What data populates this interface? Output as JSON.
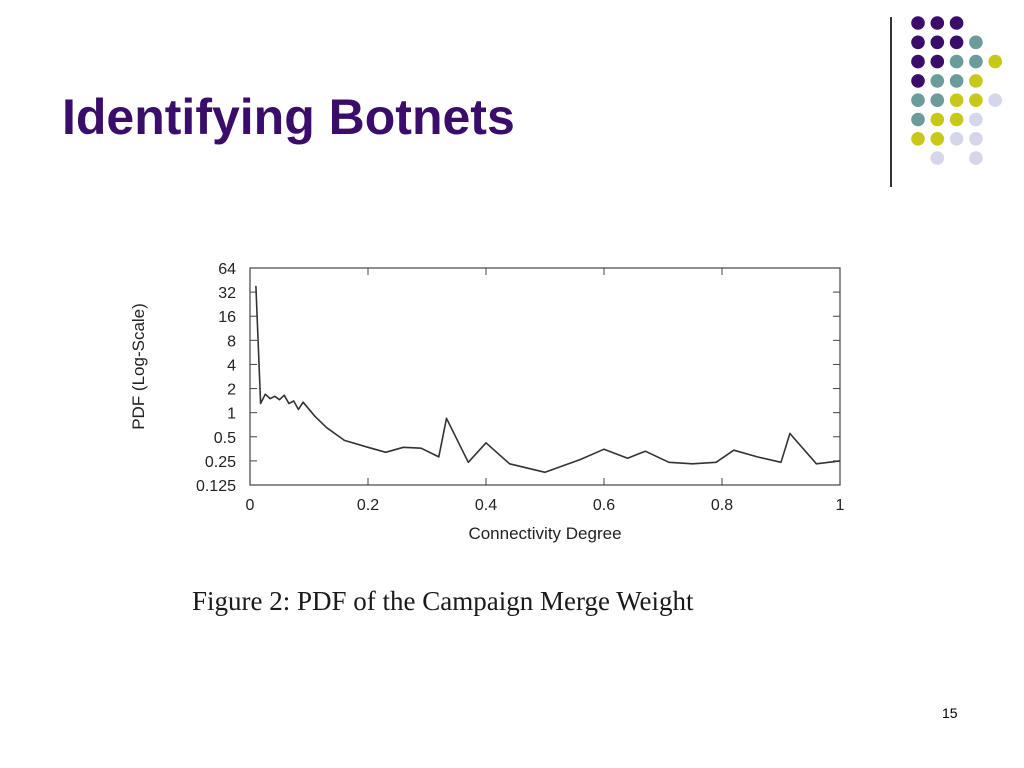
{
  "slide": {
    "title": "Identifying Botnets",
    "caption": "Figure 2: PDF of the Campaign Merge Weight",
    "page_number": "15"
  },
  "theme": {
    "title_color": "#3b0d6b",
    "dot_colors": {
      "purple": "#3b0d6b",
      "teal": "#6b9b9b",
      "yellow": "#c8c81a",
      "lavender": "#d6d6ea"
    }
  },
  "decor": {
    "dot_grid": [
      [
        "purple",
        "purple",
        "purple",
        null,
        null
      ],
      [
        "purple",
        "purple",
        "purple",
        "teal",
        null
      ],
      [
        "purple",
        "purple",
        "teal",
        "teal",
        "yellow"
      ],
      [
        "purple",
        "teal",
        "teal",
        "yellow",
        null
      ],
      [
        "teal",
        "teal",
        "yellow",
        "yellow",
        "lavender"
      ],
      [
        "teal",
        "yellow",
        "yellow",
        "lavender",
        null
      ],
      [
        "yellow",
        "yellow",
        "lavender",
        "lavender",
        null
      ],
      [
        null,
        "lavender",
        null,
        "lavender",
        null
      ]
    ]
  },
  "chart_data": {
    "type": "line",
    "title": "",
    "xlabel": "Connectivity Degree",
    "ylabel": "PDF (Log-Scale)",
    "xlim": [
      0,
      1
    ],
    "ylim": [
      0.125,
      64
    ],
    "y_scale": "log2",
    "x_ticks": [
      0,
      0.2,
      0.4,
      0.6,
      0.8,
      1
    ],
    "x_tick_labels": [
      "0",
      "0.2",
      "0.4",
      "0.6",
      "0.8",
      "1"
    ],
    "y_ticks": [
      0.125,
      0.25,
      0.5,
      1,
      2,
      4,
      8,
      16,
      32,
      64
    ],
    "y_tick_labels": [
      "0.125",
      "0.25",
      "0.5",
      "1",
      "2",
      "4",
      "8",
      "16",
      "32",
      "64"
    ],
    "grid": false,
    "line_color": "#333333",
    "series": [
      {
        "x": [
          0.01,
          0.018,
          0.026,
          0.034,
          0.042,
          0.05,
          0.058,
          0.066,
          0.074,
          0.082,
          0.09,
          0.11,
          0.13,
          0.16,
          0.2,
          0.23,
          0.26,
          0.29,
          0.32,
          0.333,
          0.37,
          0.4,
          0.44,
          0.5,
          0.56,
          0.6,
          0.64,
          0.67,
          0.71,
          0.75,
          0.79,
          0.82,
          0.86,
          0.9,
          0.915,
          0.96,
          1.0
        ],
        "y": [
          38,
          1.3,
          1.7,
          1.5,
          1.6,
          1.45,
          1.65,
          1.3,
          1.4,
          1.1,
          1.35,
          0.9,
          0.65,
          0.45,
          0.37,
          0.32,
          0.37,
          0.36,
          0.28,
          0.85,
          0.24,
          0.42,
          0.23,
          0.18,
          0.26,
          0.35,
          0.27,
          0.33,
          0.24,
          0.23,
          0.24,
          0.34,
          0.28,
          0.24,
          0.55,
          0.23,
          0.25
        ]
      }
    ]
  }
}
